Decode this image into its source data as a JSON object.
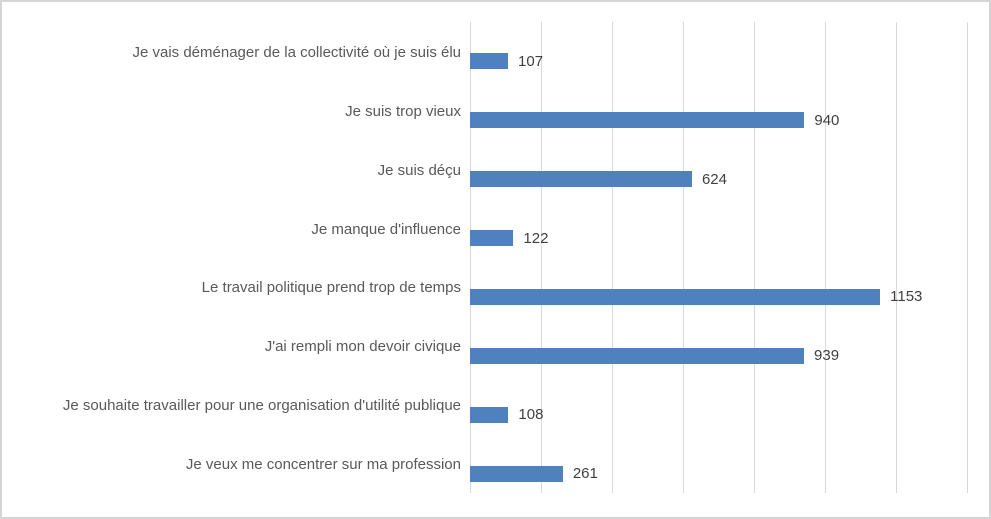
{
  "chart_data": {
    "type": "bar",
    "orientation": "horizontal",
    "title": "",
    "categories": [
      "Je vais déménager de la collectivité où je suis élu",
      "Je suis trop vieux",
      "Je suis déçu",
      "Je manque d'influence",
      "Le travail politique prend trop de temps",
      "J'ai rempli mon devoir civique",
      "Je souhaite travailler pour une organisation d'utilité publique",
      "Je veux me concentrer sur ma profession"
    ],
    "values": [
      107,
      940,
      624,
      122,
      1153,
      939,
      108,
      261
    ],
    "value_labels": [
      "107",
      "940",
      "624",
      "122",
      "1153",
      "939",
      "108",
      "261"
    ],
    "xlabel": "",
    "ylabel": "",
    "xlim": [
      0,
      1400
    ],
    "gridline_step": 200,
    "grid": true,
    "legend": false,
    "axis_tick_labels_visible": false
  },
  "style": {
    "bar_color": "#4e81bd",
    "gridline_color": "#d9d9d9",
    "category_label_color": "#595959",
    "value_label_color": "#404040",
    "frame_border_color": "#d5d5d5",
    "background_color": "#ffffff"
  }
}
